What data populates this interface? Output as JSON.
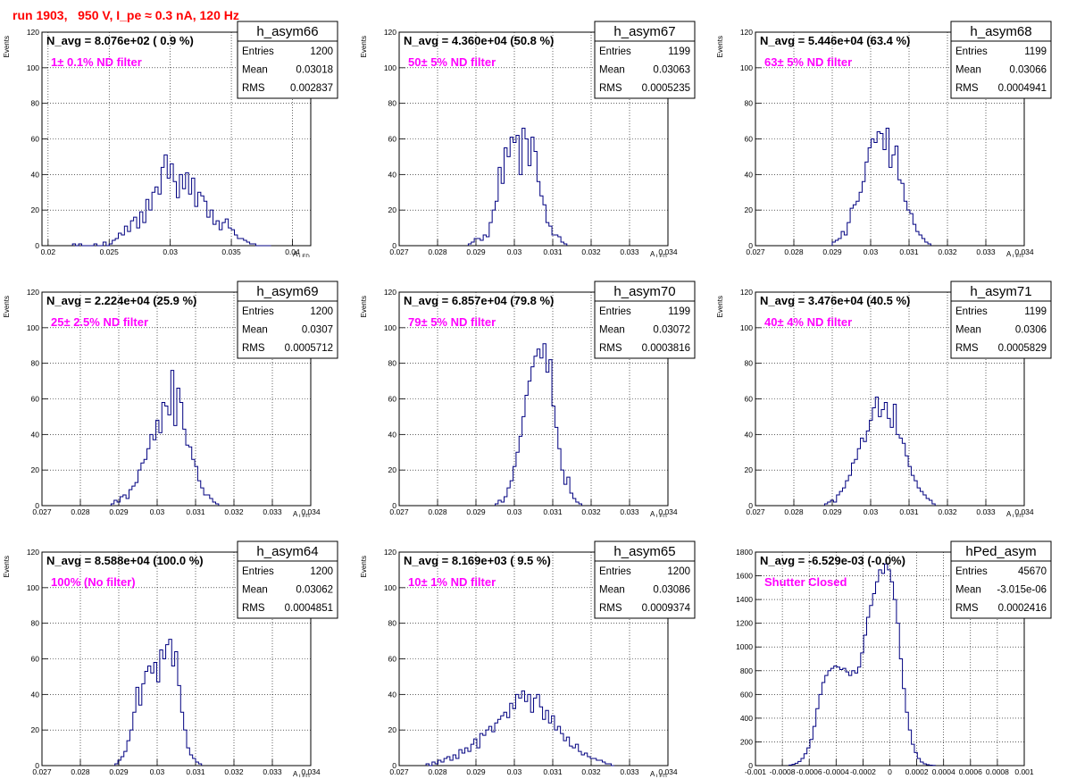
{
  "title": "run 1903,   950 V, I_pe ≈ 0.3 nA, 120 Hz",
  "chart_data": [
    {
      "type": "histogram",
      "name": "h_asym66",
      "navg": "N_avg = 8.076e+02 ( 0.9 %)",
      "filter": "1± 0.1% ND filter",
      "stats": {
        "Entries": "1200",
        "Mean": "0.03018",
        "RMS": "0.002837"
      },
      "xlabel": "A",
      "xlabel_sub": "LED",
      "ylabel": "Events",
      "xlim": [
        0.0195,
        0.0415
      ],
      "ylim": [
        0,
        120
      ],
      "xticks": [
        "0.02",
        "0.025",
        "0.03",
        "0.035",
        "0.04"
      ],
      "xtick_values": [
        0.02,
        0.025,
        0.03,
        0.035,
        0.04
      ],
      "yticks": [
        "0",
        "20",
        "40",
        "60",
        "80",
        "100",
        "120"
      ],
      "ytick_values": [
        0,
        20,
        40,
        60,
        80,
        100,
        120
      ],
      "bin_start": 0.022,
      "bin_width": 0.00025,
      "values": [
        1,
        0,
        1,
        0,
        0,
        0,
        0,
        1,
        0,
        0,
        2,
        0,
        1,
        3,
        4,
        7,
        6,
        11,
        8,
        14,
        16,
        10,
        19,
        13,
        26,
        20,
        30,
        33,
        29,
        44,
        51,
        38,
        46,
        36,
        27,
        40,
        32,
        41,
        29,
        38,
        22,
        30,
        28,
        25,
        16,
        20,
        12,
        14,
        9,
        13,
        15,
        10,
        9,
        6,
        4,
        4,
        3,
        2,
        1,
        1,
        0,
        0,
        0,
        0,
        0
      ]
    },
    {
      "type": "histogram",
      "name": "h_asym67",
      "navg": "N_avg = 4.360e+04 (50.8 %)",
      "filter": "50± 5% ND filter",
      "stats": {
        "Entries": "1199",
        "Mean": "0.03063",
        "RMS": "0.0005235"
      },
      "xlabel": "A",
      "xlabel_sub": "LED",
      "ylabel": "Events",
      "xlim": [
        0.027,
        0.034
      ],
      "ylim": [
        0,
        120
      ],
      "xticks": [
        "0.027",
        "0.028",
        "0.029",
        "0.03",
        "0.031",
        "0.032",
        "0.033",
        "0.034"
      ],
      "xtick_values": [
        0.027,
        0.028,
        0.029,
        0.03,
        0.031,
        0.032,
        0.033,
        0.034
      ],
      "yticks": [
        "0",
        "20",
        "40",
        "60",
        "80",
        "100",
        "120"
      ],
      "ytick_values": [
        0,
        20,
        40,
        60,
        80,
        100,
        120
      ],
      "bin_start": 0.0288,
      "bin_width": 7.78e-05,
      "values": [
        1,
        2,
        4,
        4,
        3,
        6,
        5,
        13,
        20,
        25,
        44,
        35,
        55,
        50,
        61,
        58,
        62,
        40,
        66,
        60,
        45,
        61,
        53,
        36,
        28,
        23,
        13,
        11,
        6,
        6,
        5,
        2,
        1
      ]
    },
    {
      "type": "histogram",
      "name": "h_asym68",
      "navg": "N_avg = 5.446e+04 (63.4 %)",
      "filter": "63± 5% ND filter",
      "stats": {
        "Entries": "1199",
        "Mean": "0.03066",
        "RMS": "0.0004941"
      },
      "xlabel": "A",
      "xlabel_sub": "LED",
      "ylabel": "Events",
      "xlim": [
        0.027,
        0.034
      ],
      "ylim": [
        0,
        120
      ],
      "xticks": [
        "0.027",
        "0.028",
        "0.029",
        "0.03",
        "0.031",
        "0.032",
        "0.033",
        "0.034"
      ],
      "xtick_values": [
        0.027,
        0.028,
        0.029,
        0.03,
        0.031,
        0.032,
        0.033,
        0.034
      ],
      "yticks": [
        "0",
        "20",
        "40",
        "60",
        "80",
        "100",
        "120"
      ],
      "ytick_values": [
        0,
        20,
        40,
        60,
        80,
        100,
        120
      ],
      "bin_start": 0.029,
      "bin_width": 7.78e-05,
      "values": [
        2,
        3,
        4,
        8,
        6,
        13,
        21,
        23,
        25,
        30,
        36,
        47,
        55,
        60,
        58,
        64,
        63,
        54,
        66,
        44,
        51,
        56,
        37,
        35,
        25,
        20,
        18,
        12,
        8,
        6,
        4,
        2,
        1
      ]
    },
    {
      "type": "histogram",
      "name": "h_asym69",
      "navg": "N_avg = 2.224e+04 (25.9 %)",
      "filter": "25± 2.5% ND filter",
      "stats": {
        "Entries": "1200",
        "Mean": "0.0307",
        "RMS": "0.0005712"
      },
      "xlabel": "A",
      "xlabel_sub": "LED",
      "ylabel": "Events",
      "xlim": [
        0.027,
        0.034
      ],
      "ylim": [
        0,
        120
      ],
      "xticks": [
        "0.027",
        "0.028",
        "0.029",
        "0.03",
        "0.031",
        "0.032",
        "0.033",
        "0.034"
      ],
      "xtick_values": [
        0.027,
        0.028,
        0.029,
        0.03,
        0.031,
        0.032,
        0.033,
        0.034
      ],
      "yticks": [
        "0",
        "20",
        "40",
        "60",
        "80",
        "100",
        "120"
      ],
      "ytick_values": [
        0,
        20,
        40,
        60,
        80,
        100,
        120
      ],
      "bin_start": 0.0288,
      "bin_width": 7.78e-05,
      "values": [
        1,
        3,
        2,
        5,
        6,
        4,
        9,
        11,
        13,
        20,
        24,
        26,
        32,
        40,
        37,
        48,
        41,
        58,
        56,
        51,
        76,
        45,
        66,
        58,
        43,
        34,
        33,
        26,
        22,
        14,
        10,
        6,
        6,
        4,
        2,
        1
      ]
    },
    {
      "type": "histogram",
      "name": "h_asym70",
      "navg": "N_avg = 6.857e+04 (79.8 %)",
      "filter": "79± 5% ND filter",
      "stats": {
        "Entries": "1199",
        "Mean": "0.03072",
        "RMS": "0.0003816"
      },
      "xlabel": "A",
      "xlabel_sub": "LED",
      "ylabel": "Events",
      "xlim": [
        0.027,
        0.034
      ],
      "ylim": [
        0,
        120
      ],
      "xticks": [
        "0.027",
        "0.028",
        "0.029",
        "0.03",
        "0.031",
        "0.032",
        "0.033",
        "0.034"
      ],
      "xtick_values": [
        0.027,
        0.028,
        0.029,
        0.03,
        0.031,
        0.032,
        0.033,
        0.034
      ],
      "yticks": [
        "0",
        "20",
        "40",
        "60",
        "80",
        "100",
        "120"
      ],
      "ytick_values": [
        0,
        20,
        40,
        60,
        80,
        100,
        120
      ],
      "bin_start": 0.0295,
      "bin_width": 7.78e-05,
      "values": [
        1,
        3,
        2,
        5,
        10,
        14,
        22,
        30,
        39,
        50,
        62,
        70,
        78,
        84,
        88,
        83,
        91,
        75,
        82,
        56,
        44,
        32,
        20,
        12,
        16,
        7,
        4,
        2,
        1
      ]
    },
    {
      "type": "histogram",
      "name": "h_asym71",
      "navg": "N_avg = 3.476e+04 (40.5 %)",
      "filter": "40± 4% ND filter",
      "stats": {
        "Entries": "1199",
        "Mean": "0.0306",
        "RMS": "0.0005829"
      },
      "xlabel": "A",
      "xlabel_sub": "LED",
      "ylabel": "Events",
      "xlim": [
        0.027,
        0.034
      ],
      "ylim": [
        0,
        120
      ],
      "xticks": [
        "0.027",
        "0.028",
        "0.029",
        "0.03",
        "0.031",
        "0.032",
        "0.033",
        "0.034"
      ],
      "xtick_values": [
        0.027,
        0.028,
        0.029,
        0.03,
        0.031,
        0.032,
        0.033,
        0.034
      ],
      "yticks": [
        "0",
        "20",
        "40",
        "60",
        "80",
        "100",
        "120"
      ],
      "ytick_values": [
        0,
        20,
        40,
        60,
        80,
        100,
        120
      ],
      "bin_start": 0.0288,
      "bin_width": 7.78e-05,
      "values": [
        1,
        2,
        3,
        2,
        6,
        8,
        10,
        14,
        17,
        24,
        26,
        32,
        38,
        36,
        42,
        48,
        55,
        61,
        50,
        54,
        58,
        49,
        44,
        57,
        40,
        38,
        35,
        28,
        22,
        17,
        14,
        10,
        8,
        6,
        4,
        3,
        1
      ]
    },
    {
      "type": "histogram",
      "name": "h_asym64",
      "navg": "N_avg = 8.588e+04 (100.0 %)",
      "filter": "100% (No filter)",
      "stats": {
        "Entries": "1200",
        "Mean": "0.03062",
        "RMS": "0.0004851"
      },
      "xlabel": "A",
      "xlabel_sub": "LED",
      "ylabel": "Events",
      "xlim": [
        0.027,
        0.034
      ],
      "ylim": [
        0,
        120
      ],
      "xticks": [
        "0.027",
        "0.028",
        "0.029",
        "0.03",
        "0.031",
        "0.032",
        "0.033",
        "0.034"
      ],
      "xtick_values": [
        0.027,
        0.028,
        0.029,
        0.03,
        0.031,
        0.032,
        0.033,
        0.034
      ],
      "yticks": [
        "0",
        "20",
        "40",
        "60",
        "80",
        "100",
        "120"
      ],
      "ytick_values": [
        0,
        20,
        40,
        60,
        80,
        100,
        120
      ],
      "bin_start": 0.0289,
      "bin_width": 7.78e-05,
      "values": [
        1,
        3,
        5,
        8,
        14,
        20,
        30,
        44,
        34,
        46,
        53,
        56,
        52,
        58,
        47,
        65,
        60,
        68,
        71,
        56,
        64,
        45,
        30,
        20,
        10,
        6,
        4,
        2,
        1
      ]
    },
    {
      "type": "histogram",
      "name": "h_asym65",
      "navg": "N_avg = 8.169e+03 ( 9.5 %)",
      "filter": "10± 1% ND filter",
      "stats": {
        "Entries": "1200",
        "Mean": "0.03086",
        "RMS": "0.0009374"
      },
      "xlabel": "A",
      "xlabel_sub": "LED",
      "ylabel": "Events",
      "xlim": [
        0.027,
        0.034
      ],
      "ylim": [
        0,
        120
      ],
      "xticks": [
        "0.027",
        "0.028",
        "0.029",
        "0.03",
        "0.031",
        "0.032",
        "0.033",
        "0.034"
      ],
      "xtick_values": [
        0.027,
        0.028,
        0.029,
        0.03,
        0.031,
        0.032,
        0.033,
        0.034
      ],
      "yticks": [
        "0",
        "20",
        "40",
        "60",
        "80",
        "100",
        "120"
      ],
      "ytick_values": [
        0,
        20,
        40,
        60,
        80,
        100,
        120
      ],
      "bin_start": 0.0277,
      "bin_width": 7.78e-05,
      "values": [
        1,
        0,
        2,
        1,
        3,
        2,
        4,
        5,
        3,
        6,
        4,
        9,
        7,
        10,
        8,
        12,
        15,
        10,
        18,
        17,
        20,
        22,
        19,
        24,
        26,
        28,
        30,
        27,
        35,
        32,
        40,
        38,
        42,
        36,
        40,
        30,
        38,
        40,
        33,
        26,
        31,
        24,
        28,
        20,
        22,
        18,
        14,
        16,
        11,
        10,
        12,
        8,
        6,
        7,
        5,
        4,
        4,
        3,
        3,
        2,
        1,
        1,
        0
      ]
    },
    {
      "type": "histogram",
      "name": "hPed_asym",
      "navg": "N_avg = -6.529e-03 (-0.0%)",
      "filter": "Shutter Closed",
      "stats": {
        "Entries": "45670",
        "Mean": "-3.015e-06",
        "RMS": "0.0002416"
      },
      "xlabel": "",
      "xlabel_sub": "",
      "ylabel": "",
      "xlim": [
        -0.001,
        0.001
      ],
      "ylim": [
        0,
        1800
      ],
      "xticks": [
        "-0.001",
        "-0.0008",
        "-0.0006",
        "-0.0004",
        "-0.0002",
        "0",
        "0.0002",
        "0.0004",
        "0.0006",
        "0.0008",
        "0.001"
      ],
      "xtick_values": [
        -0.001,
        -0.0008,
        -0.0006,
        -0.0004,
        -0.0002,
        0,
        0.0002,
        0.0004,
        0.0006,
        0.0008,
        0.001
      ],
      "yticks": [
        "0",
        "200",
        "400",
        "600",
        "800",
        "1000",
        "1200",
        "1400",
        "1600",
        "1800"
      ],
      "ytick_values": [
        0,
        200,
        400,
        600,
        800,
        1000,
        1200,
        1400,
        1600,
        1800
      ],
      "bin_start": -0.00075,
      "bin_width": 2.22e-05,
      "values": [
        5,
        10,
        20,
        35,
        60,
        100,
        150,
        220,
        330,
        480,
        600,
        700,
        760,
        800,
        820,
        840,
        830,
        810,
        820,
        790,
        760,
        800,
        780,
        830,
        950,
        1100,
        1250,
        1350,
        1450,
        1550,
        1650,
        1620,
        1700,
        1650,
        1550,
        1400,
        1200,
        900,
        650,
        450,
        300,
        180,
        110,
        60,
        30,
        15,
        8,
        4,
        2
      ]
    }
  ]
}
